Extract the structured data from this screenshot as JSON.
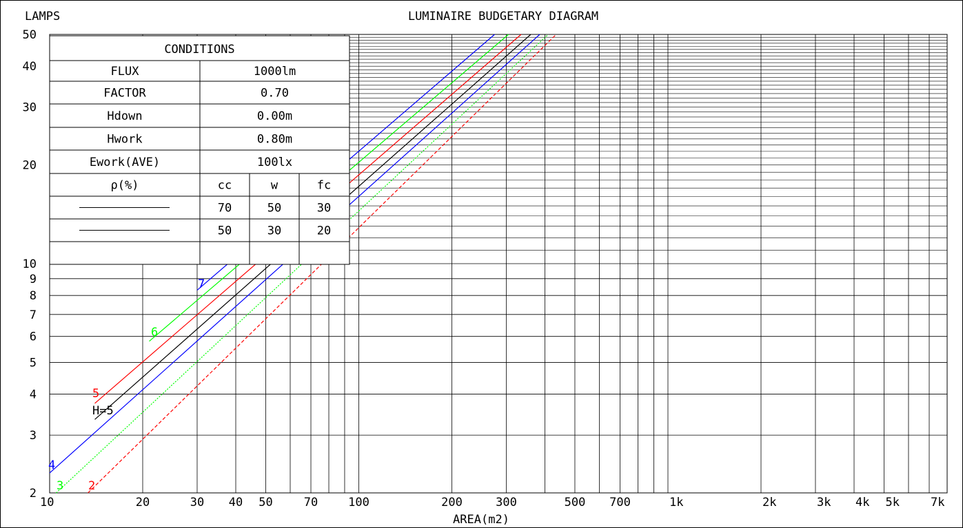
{
  "chart_data": {
    "type": "line",
    "title": "LUMINAIRE BUDGETARY DIAGRAM",
    "ylabel": "LAMPS",
    "xlabel": "AREA(m2)",
    "x_scale": "log",
    "y_scale": "log",
    "xlim": [
      10,
      8000
    ],
    "ylim": [
      2,
      50
    ],
    "x_ticks": [
      {
        "v": 10,
        "label": "10"
      },
      {
        "v": 20,
        "label": "20"
      },
      {
        "v": 30,
        "label": "30"
      },
      {
        "v": 40,
        "label": "40"
      },
      {
        "v": 50,
        "label": "50"
      },
      {
        "v": 70,
        "label": "70"
      },
      {
        "v": 100,
        "label": "100"
      },
      {
        "v": 200,
        "label": "200"
      },
      {
        "v": 300,
        "label": "300"
      },
      {
        "v": 500,
        "label": "500"
      },
      {
        "v": 700,
        "label": "700"
      },
      {
        "v": 1000,
        "label": "1k"
      },
      {
        "v": 2000,
        "label": "2k"
      },
      {
        "v": 3000,
        "label": "3k"
      },
      {
        "v": 4000,
        "label": "4k"
      },
      {
        "v": 5000,
        "label": "5k"
      },
      {
        "v": 7000,
        "label": "7k"
      }
    ],
    "y_ticks": [
      {
        "v": 2,
        "label": "2"
      },
      {
        "v": 3,
        "label": "3"
      },
      {
        "v": 4,
        "label": "4"
      },
      {
        "v": 5,
        "label": "5"
      },
      {
        "v": 6,
        "label": "6"
      },
      {
        "v": 7,
        "label": "7"
      },
      {
        "v": 8,
        "label": "8"
      },
      {
        "v": 9,
        "label": "9"
      },
      {
        "v": 10,
        "label": "10"
      },
      {
        "v": 20,
        "label": "20"
      },
      {
        "v": 30,
        "label": "30"
      },
      {
        "v": 40,
        "label": "40"
      },
      {
        "v": 50,
        "label": "50"
      }
    ],
    "grid": true,
    "series": [
      {
        "name": "7",
        "color": "#0000ff",
        "style": "solid",
        "points": [
          [
            30,
            8.3
          ],
          [
            275,
            50
          ]
        ]
      },
      {
        "name": "6",
        "color": "#00ff00",
        "style": "solid",
        "points": [
          [
            21,
            5.8
          ],
          [
            305,
            50
          ]
        ]
      },
      {
        "name": "5",
        "color": "#ff0000",
        "style": "solid",
        "points": [
          [
            14,
            3.75
          ],
          [
            335,
            50
          ]
        ]
      },
      {
        "name": "H=5",
        "color": "#000000",
        "style": "solid",
        "points": [
          [
            14,
            3.35
          ],
          [
            360,
            50
          ]
        ]
      },
      {
        "name": "4",
        "color": "#0000ff",
        "style": "solid",
        "points": [
          [
            10,
            2.3
          ],
          [
            385,
            50
          ]
        ]
      },
      {
        "name": "3",
        "color": "#00ff00",
        "style": "dotted",
        "points": [
          [
            10.5,
            2.0
          ],
          [
            410,
            50
          ]
        ]
      },
      {
        "name": "2",
        "color": "#ff0000",
        "style": "dashed",
        "points": [
          [
            13.3,
            2.0
          ],
          [
            435,
            50
          ]
        ]
      }
    ]
  },
  "conditions": {
    "title": "CONDITIONS",
    "rows": [
      {
        "label": "FLUX",
        "value": "1000lm"
      },
      {
        "label": "FACTOR",
        "value": "0.70"
      },
      {
        "label": "Hdown",
        "value": "0.00m"
      },
      {
        "label": "Hwork",
        "value": "0.80m"
      },
      {
        "label": "Ework(AVE)",
        "value": "100lx"
      }
    ],
    "rho_label": "ρ(%)",
    "rho_headers": [
      "cc",
      "w",
      "fc"
    ],
    "rho_rows": [
      {
        "line_color": "#000000",
        "values": [
          "70",
          "50",
          "30"
        ]
      },
      {
        "line_color": "#000000",
        "values": [
          "50",
          "30",
          "20"
        ]
      }
    ]
  }
}
